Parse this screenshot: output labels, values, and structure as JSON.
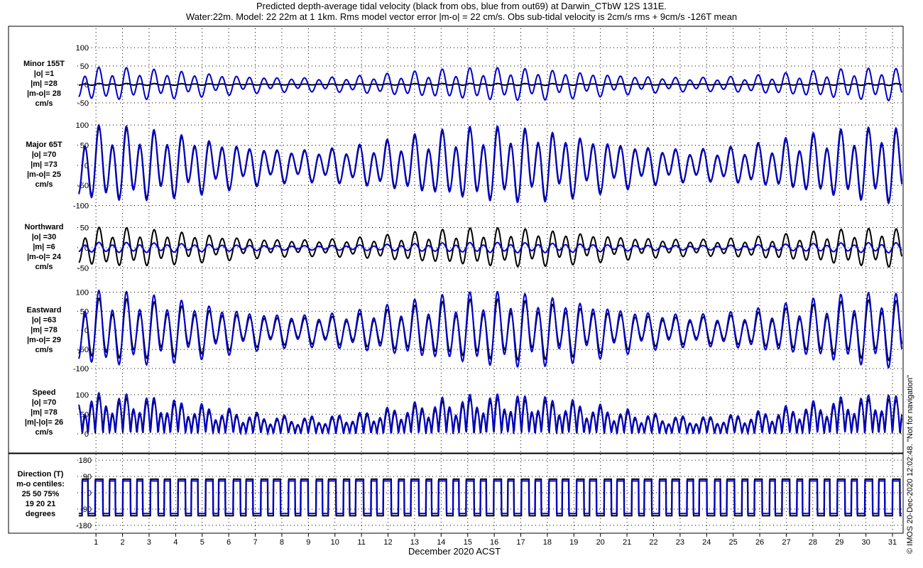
{
  "title_line1": "Predicted depth-average tidal velocity (black from obs, blue from out69) at Darwin_CTbW 12S 131E.",
  "title_line2": "Water:22m. Model: 22 22m at 1 1km. Rms model vector error |m-o| = 22 cm/s. Obs sub-tidal velocity is 2cm/s rms + 9cm/s -126T mean",
  "xlabel": "December 2020 ACST",
  "credit": "© IMOS 20-Dec-2020 12:02:48. \"Not for navigation\"",
  "colors": {
    "obs": "#000000",
    "model": "#0000cc",
    "grid": "#000000"
  },
  "chart_data": {
    "type": "line",
    "x_axis": {
      "label": "December 2020 ACST",
      "ticks": [
        "1",
        "2",
        "3",
        "4",
        "5",
        "6",
        "7",
        "8",
        "9",
        "10",
        "11",
        "12",
        "13",
        "14",
        "15",
        "16",
        "17",
        "18",
        "19",
        "20",
        "21",
        "22",
        "23",
        "24",
        "25",
        "26",
        "27",
        "28",
        "29",
        "30",
        "31"
      ],
      "range_days": [
        0.3,
        31.4
      ]
    },
    "series_names": [
      "black from obs",
      "blue from out69"
    ],
    "panels": [
      {
        "id": "minor",
        "label": [
          "Minor 155T",
          "|o| =1",
          "|m| =28",
          "|m-o|= 28",
          "cm/s"
        ],
        "ylim": [
          -60,
          110
        ],
        "yticks": [
          "100",
          "50",
          "0",
          "-50"
        ],
        "tick_values": [
          100,
          50,
          0,
          -50
        ],
        "obs_amp": 2,
        "model_amp": 35,
        "model_offset": 0
      },
      {
        "id": "major",
        "label": [
          "Major 65T",
          "|o| =70",
          "|m| =73",
          "|m-o|= 25",
          "cm/s"
        ],
        "ylim": [
          -115,
          125
        ],
        "yticks": [
          "100",
          "50",
          "0",
          "-50",
          "-100"
        ],
        "tick_values": [
          100,
          50,
          0,
          -50,
          -100
        ],
        "obs_amp": 70,
        "model_amp": 75,
        "model_offset": 0
      },
      {
        "id": "north",
        "label": [
          "Northward",
          "|o| =30",
          "|m| =6",
          "|m-o|= 24",
          "cm/s"
        ],
        "ylim": [
          -60,
          65
        ],
        "yticks": [
          "50",
          "0",
          "-50"
        ],
        "tick_values": [
          50,
          0,
          -50
        ],
        "obs_amp": 38,
        "model_amp": 10,
        "model_offset": 0
      },
      {
        "id": "east",
        "label": [
          "Eastward",
          "|o| =63",
          "|m| =78",
          "|m-o|= 29",
          "cm/s"
        ],
        "ylim": [
          -115,
          125
        ],
        "yticks": [
          "100",
          "50",
          "0",
          "-50",
          "-100"
        ],
        "tick_values": [
          100,
          50,
          0,
          -50,
          -100
        ],
        "obs_amp": 63,
        "model_amp": 78,
        "model_offset": 0
      },
      {
        "id": "speed",
        "label": [
          "Speed",
          "|o| =70",
          "|m| =78",
          "|m|-|o|= 26",
          "cm/s"
        ],
        "ylim": [
          0,
          145
        ],
        "yticks": [
          "100",
          "50",
          "0"
        ],
        "tick_values": [
          100,
          50,
          0
        ],
        "obs_amp": 70,
        "model_amp": 78,
        "model_offset": 0
      }
    ],
    "direction_panel": {
      "label": [
        "Direction (T)",
        "m-o centiles:",
        "25  50  75%",
        "19  20  21",
        "degrees"
      ],
      "ylim": [
        -200,
        200
      ],
      "yticks": [
        "180",
        "90",
        "0",
        "-90",
        "-180"
      ],
      "tick_values": [
        180,
        90,
        0,
        -90,
        -180
      ],
      "levels_deg": [
        65,
        -115
      ]
    }
  }
}
